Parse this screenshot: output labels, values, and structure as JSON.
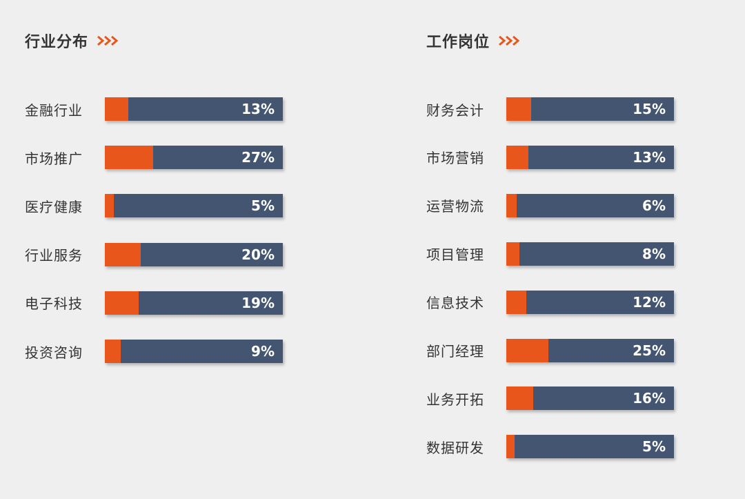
{
  "colors": {
    "accent": "#e8561b",
    "bar": "#435570",
    "background": "#efefef",
    "text": "#333333"
  },
  "chart_data": [
    {
      "type": "bar",
      "orientation": "horizontal",
      "title": "行业分布",
      "categories": [
        "金融行业",
        "市场推广",
        "医疗健康",
        "行业服务",
        "电子科技",
        "投资咨询"
      ],
      "values": [
        13,
        27,
        5,
        20,
        19,
        9
      ],
      "labels": [
        "13%",
        "27%",
        "5%",
        "20%",
        "19%",
        "9%"
      ],
      "unit": "%",
      "xlim": [
        0,
        100
      ]
    },
    {
      "type": "bar",
      "orientation": "horizontal",
      "title": "工作岗位",
      "categories": [
        "财务会计",
        "市场营销",
        "运营物流",
        "项目管理",
        "信息技术",
        "部门经理",
        "业务开拓",
        "数据研发"
      ],
      "values": [
        15,
        13,
        6,
        8,
        12,
        25,
        16,
        5
      ],
      "labels": [
        "15%",
        "13%",
        "6%",
        "8%",
        "12%",
        "25%",
        "16%",
        "5%"
      ],
      "unit": "%",
      "xlim": [
        0,
        100
      ]
    }
  ]
}
